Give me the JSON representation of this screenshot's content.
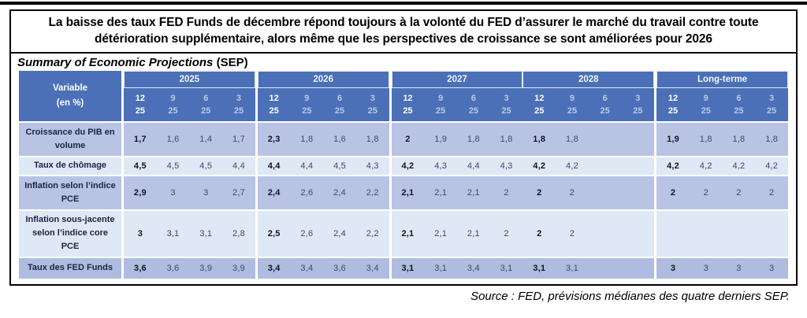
{
  "headline": "La baisse des taux FED Funds de décembre répond toujours à la volonté du FED d’assurer le marché du travail contre toute détérioration supplémentaire, alors même que les perspectives de croissance se sont améliorées pour 2026",
  "table_title": {
    "italic": "Summary of Economic Projections",
    "suffix": " (SEP)"
  },
  "source": "Source : FED, prévisions médianes des quatre derniers SEP.",
  "colors": {
    "header_blue": "#4b70b8",
    "row_periwinkle": "#b9c4e4",
    "row_light": "#dfe8f5",
    "row_fedfunds": "#aebcdf"
  },
  "table": {
    "variable_header": [
      "Variable",
      "(en %)"
    ],
    "years": [
      "2025",
      "2026",
      "2027",
      "2028",
      "Long-terme"
    ],
    "months_top": [
      "12",
      "9",
      "6",
      "3"
    ],
    "months_bottom": [
      "25",
      "25",
      "25",
      "25"
    ],
    "rows": [
      {
        "label": "Croissance du PIB en volume",
        "shade": "periwinkle",
        "values": [
          [
            "1,7",
            "1,6",
            "1,4",
            "1,7"
          ],
          [
            "2,3",
            "1,8",
            "1,6",
            "1,8"
          ],
          [
            "2",
            "1,9",
            "1,8",
            "1,8"
          ],
          [
            "1,8",
            "1,8",
            "",
            ""
          ],
          [
            "1,9",
            "1,8",
            "1,8",
            "1,8"
          ]
        ]
      },
      {
        "label": "Taux de chômage",
        "shade": "light",
        "values": [
          [
            "4,5",
            "4,5",
            "4,5",
            "4,4"
          ],
          [
            "4,4",
            "4,4",
            "4,5",
            "4,3"
          ],
          [
            "4,2",
            "4,3",
            "4,4",
            "4,3"
          ],
          [
            "4,2",
            "4,2",
            "",
            ""
          ],
          [
            "4,2",
            "4,2",
            "4,2",
            "4,2"
          ]
        ]
      },
      {
        "label": "Inflation selon l’indice PCE",
        "shade": "periwinkle",
        "values": [
          [
            "2,9",
            "3",
            "3",
            "2,7"
          ],
          [
            "2,4",
            "2,6",
            "2,4",
            "2,2"
          ],
          [
            "2,1",
            "2,1",
            "2,1",
            "2"
          ],
          [
            "2",
            "2",
            "",
            ""
          ],
          [
            "2",
            "2",
            "2",
            "2"
          ]
        ]
      },
      {
        "label": "Inflation sous-jacente selon l’indice core PCE",
        "shade": "light",
        "values": [
          [
            "3",
            "3,1",
            "3,1",
            "2,8"
          ],
          [
            "2,5",
            "2,6",
            "2,4",
            "2,2"
          ],
          [
            "2,1",
            "2,1",
            "2,1",
            "2"
          ],
          [
            "2",
            "2",
            "",
            ""
          ],
          [
            "",
            "",
            "",
            ""
          ]
        ]
      },
      {
        "label": "Taux des FED Funds",
        "shade": "fedfunds",
        "values": [
          [
            "3,6",
            "3,6",
            "3,9",
            "3,9"
          ],
          [
            "3,4",
            "3,4",
            "3,6",
            "3,4"
          ],
          [
            "3,1",
            "3,1",
            "3,4",
            "3,1"
          ],
          [
            "3,1",
            "3,1",
            "",
            ""
          ],
          [
            "3",
            "3",
            "3",
            "3"
          ]
        ]
      }
    ]
  }
}
